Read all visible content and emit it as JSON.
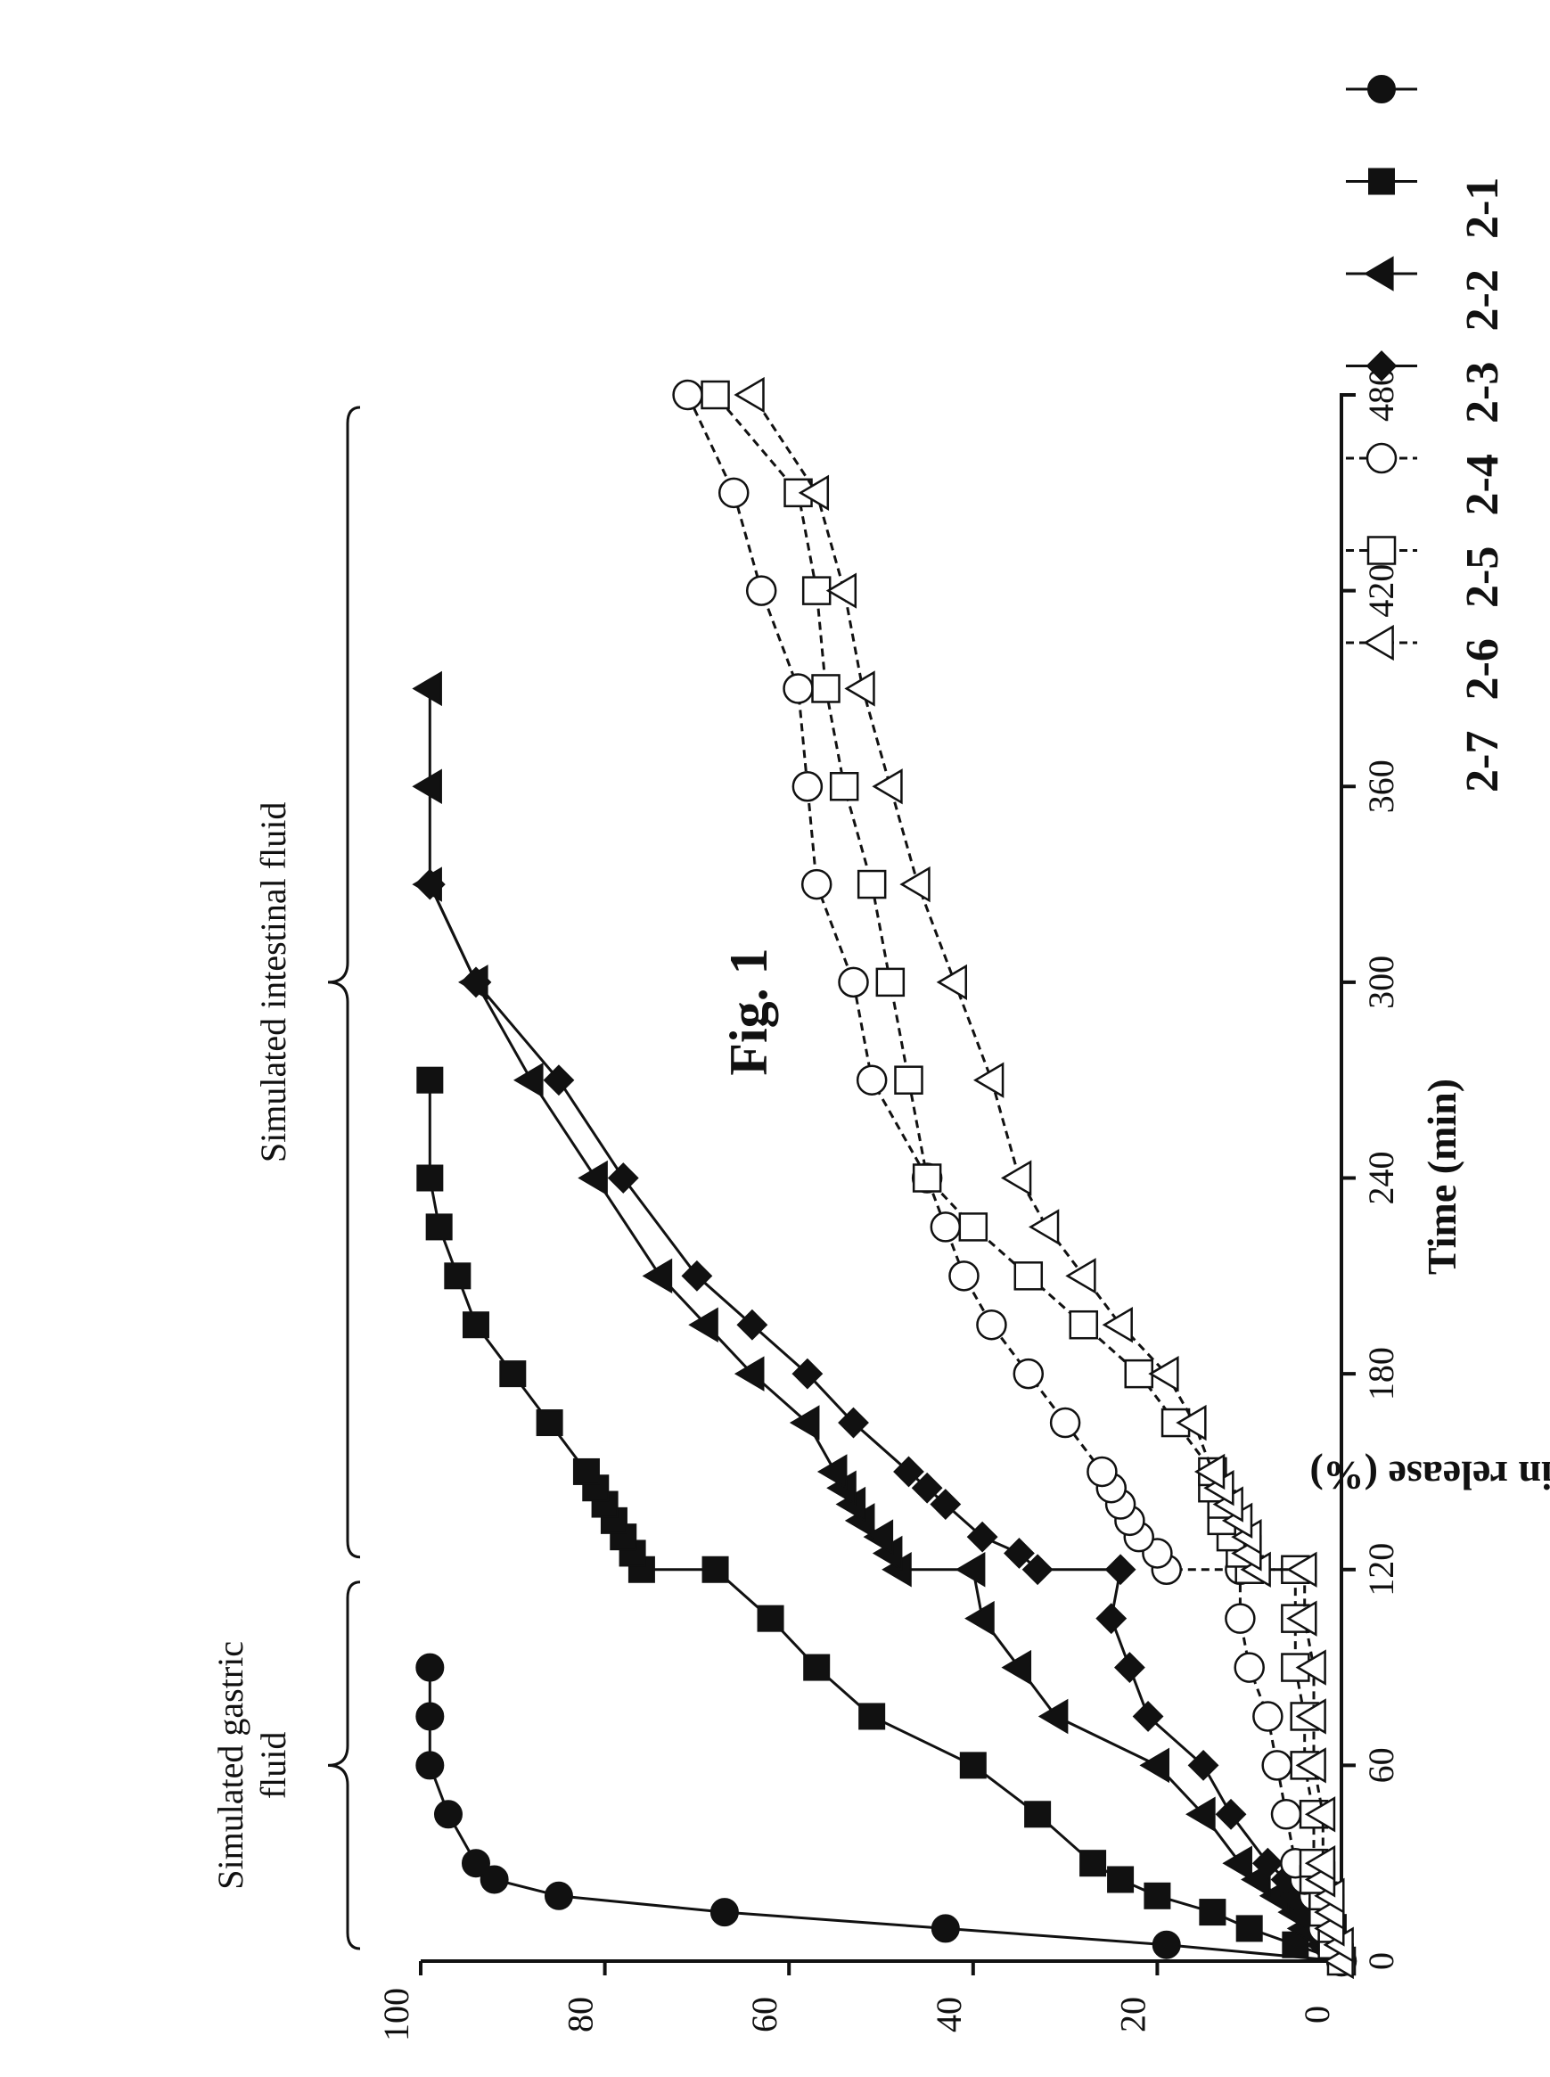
{
  "figure_title": "Fig. 1",
  "chart_data": {
    "type": "line",
    "title": "",
    "xlabel": "Time (min)",
    "ylabel": "Riboflavin release (%)",
    "xlim": [
      0,
      480
    ],
    "ylim": [
      0,
      100
    ],
    "xticks": [
      0,
      60,
      120,
      180,
      240,
      300,
      360,
      420,
      480
    ],
    "yticks": [
      0,
      20,
      40,
      60,
      80,
      100
    ],
    "grid": false,
    "legend_position": "top-right",
    "regions": [
      {
        "label_lines": [
          "Simulated gastric",
          "fluid"
        ],
        "x_range": [
          0,
          120
        ]
      },
      {
        "label_lines": [
          "Simulated intestinal fluid"
        ],
        "x_range": [
          120,
          480
        ]
      }
    ],
    "series": [
      {
        "name": "2-1",
        "marker": "circle-filled",
        "line": "solid",
        "points": [
          [
            0,
            0
          ],
          [
            5,
            19
          ],
          [
            10,
            43
          ],
          [
            15,
            67
          ],
          [
            20,
            85
          ],
          [
            25,
            92
          ],
          [
            30,
            94
          ],
          [
            45,
            97
          ],
          [
            60,
            99
          ],
          [
            75,
            99
          ],
          [
            90,
            99
          ]
        ]
      },
      {
        "name": "2-2",
        "marker": "square-filled",
        "line": "solid",
        "points": [
          [
            0,
            0
          ],
          [
            5,
            5
          ],
          [
            10,
            10
          ],
          [
            15,
            14
          ],
          [
            20,
            20
          ],
          [
            25,
            24
          ],
          [
            30,
            27
          ],
          [
            45,
            33
          ],
          [
            60,
            40
          ],
          [
            75,
            51
          ],
          [
            90,
            57
          ],
          [
            105,
            62
          ],
          [
            120,
            68
          ],
          [
            120,
            76
          ],
          [
            125,
            77
          ],
          [
            130,
            78
          ],
          [
            135,
            79
          ],
          [
            140,
            80
          ],
          [
            145,
            81
          ],
          [
            150,
            82
          ],
          [
            165,
            86
          ],
          [
            180,
            90
          ],
          [
            195,
            94
          ],
          [
            210,
            96
          ],
          [
            225,
            98
          ],
          [
            240,
            99
          ],
          [
            270,
            99
          ]
        ]
      },
      {
        "name": "2-3",
        "marker": "triangle-filled",
        "line": "solid",
        "points": [
          [
            0,
            0
          ],
          [
            5,
            2
          ],
          [
            10,
            4
          ],
          [
            15,
            5
          ],
          [
            20,
            7
          ],
          [
            25,
            9
          ],
          [
            30,
            11
          ],
          [
            45,
            15
          ],
          [
            60,
            20
          ],
          [
            75,
            31
          ],
          [
            90,
            35
          ],
          [
            105,
            39
          ],
          [
            120,
            40
          ],
          [
            120,
            48
          ],
          [
            125,
            49
          ],
          [
            130,
            50
          ],
          [
            135,
            52
          ],
          [
            140,
            53
          ],
          [
            145,
            54
          ],
          [
            150,
            55
          ],
          [
            165,
            58
          ],
          [
            180,
            64
          ],
          [
            195,
            69
          ],
          [
            210,
            74
          ],
          [
            240,
            81
          ],
          [
            270,
            88
          ],
          [
            300,
            94
          ],
          [
            330,
            99
          ],
          [
            360,
            99
          ],
          [
            390,
            99
          ]
        ]
      },
      {
        "name": "2-4",
        "marker": "diamond-filled",
        "line": "solid",
        "points": [
          [
            0,
            0
          ],
          [
            5,
            2
          ],
          [
            10,
            3
          ],
          [
            15,
            4
          ],
          [
            20,
            5
          ],
          [
            25,
            6
          ],
          [
            30,
            8
          ],
          [
            45,
            12
          ],
          [
            60,
            15
          ],
          [
            75,
            21
          ],
          [
            90,
            23
          ],
          [
            105,
            25
          ],
          [
            120,
            24
          ],
          [
            120,
            33
          ],
          [
            125,
            35
          ],
          [
            130,
            39
          ],
          [
            140,
            43
          ],
          [
            145,
            45
          ],
          [
            150,
            47
          ],
          [
            165,
            53
          ],
          [
            180,
            58
          ],
          [
            195,
            64
          ],
          [
            210,
            70
          ],
          [
            240,
            78
          ],
          [
            270,
            85
          ],
          [
            300,
            94
          ],
          [
            330,
            99
          ]
        ]
      },
      {
        "name": "2-5",
        "marker": "circle-open",
        "line": "dashed",
        "points": [
          [
            0,
            0
          ],
          [
            5,
            1
          ],
          [
            10,
            2
          ],
          [
            15,
            2
          ],
          [
            20,
            3
          ],
          [
            25,
            4
          ],
          [
            30,
            5
          ],
          [
            45,
            6
          ],
          [
            60,
            7
          ],
          [
            75,
            8
          ],
          [
            90,
            10
          ],
          [
            105,
            11
          ],
          [
            120,
            11
          ],
          [
            120,
            19
          ],
          [
            125,
            20
          ],
          [
            130,
            22
          ],
          [
            135,
            23
          ],
          [
            140,
            24
          ],
          [
            145,
            25
          ],
          [
            150,
            26
          ],
          [
            165,
            30
          ],
          [
            180,
            34
          ],
          [
            195,
            38
          ],
          [
            210,
            41
          ],
          [
            225,
            43
          ],
          [
            240,
            45
          ],
          [
            270,
            51
          ],
          [
            300,
            53
          ],
          [
            330,
            57
          ],
          [
            360,
            58
          ],
          [
            390,
            59
          ],
          [
            420,
            63
          ],
          [
            450,
            66
          ],
          [
            480,
            71
          ]
        ]
      },
      {
        "name": "2-6",
        "marker": "square-open",
        "line": "dashed",
        "points": [
          [
            0,
            0
          ],
          [
            5,
            1
          ],
          [
            10,
            1
          ],
          [
            15,
            2
          ],
          [
            20,
            2
          ],
          [
            25,
            3
          ],
          [
            30,
            3
          ],
          [
            45,
            3
          ],
          [
            60,
            4
          ],
          [
            75,
            4
          ],
          [
            90,
            5
          ],
          [
            105,
            5
          ],
          [
            120,
            5
          ],
          [
            120,
            10
          ],
          [
            125,
            11
          ],
          [
            130,
            12
          ],
          [
            135,
            13
          ],
          [
            140,
            13
          ],
          [
            145,
            14
          ],
          [
            150,
            14
          ],
          [
            165,
            18
          ],
          [
            180,
            22
          ],
          [
            195,
            28
          ],
          [
            210,
            34
          ],
          [
            225,
            40
          ],
          [
            240,
            45
          ],
          [
            270,
            47
          ],
          [
            300,
            49
          ],
          [
            330,
            51
          ],
          [
            360,
            54
          ],
          [
            390,
            56
          ],
          [
            420,
            57
          ],
          [
            450,
            59
          ],
          [
            480,
            68
          ]
        ]
      },
      {
        "name": "2-7",
        "marker": "triangle-open",
        "line": "dashed",
        "points": [
          [
            0,
            0
          ],
          [
            5,
            0
          ],
          [
            10,
            1
          ],
          [
            15,
            1
          ],
          [
            20,
            1
          ],
          [
            25,
            2
          ],
          [
            30,
            2
          ],
          [
            45,
            2
          ],
          [
            60,
            3
          ],
          [
            75,
            3
          ],
          [
            90,
            3
          ],
          [
            105,
            4
          ],
          [
            120,
            4
          ],
          [
            120,
            9
          ],
          [
            125,
            10
          ],
          [
            130,
            10
          ],
          [
            135,
            11
          ],
          [
            140,
            12
          ],
          [
            145,
            13
          ],
          [
            150,
            14
          ],
          [
            165,
            16
          ],
          [
            180,
            19
          ],
          [
            195,
            24
          ],
          [
            210,
            28
          ],
          [
            225,
            32
          ],
          [
            240,
            35
          ],
          [
            270,
            38
          ],
          [
            300,
            42
          ],
          [
            330,
            46
          ],
          [
            360,
            49
          ],
          [
            390,
            52
          ],
          [
            420,
            54
          ],
          [
            450,
            57
          ],
          [
            480,
            64
          ]
        ]
      }
    ]
  }
}
